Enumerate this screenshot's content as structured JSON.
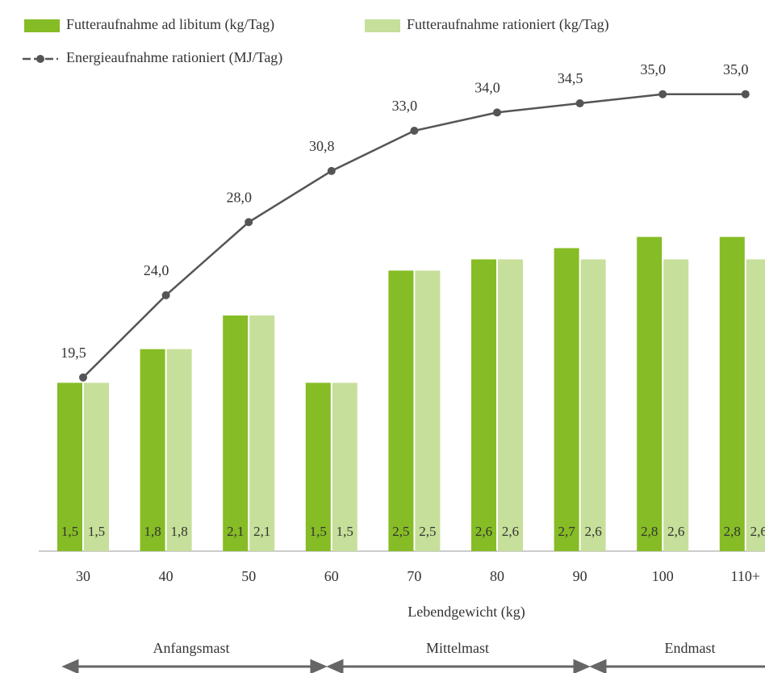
{
  "chart_data": {
    "type": "bar",
    "x_label": "Lebendgewicht (kg)",
    "categories": [
      "30",
      "40",
      "50",
      "60",
      "70",
      "80",
      "90",
      "100",
      "110+"
    ],
    "series": [
      {
        "name": "Futteraufnahme ad libitum (kg/Tag)",
        "color": "#86bc25",
        "values": [
          1.5,
          1.8,
          2.1,
          1.5,
          2.5,
          2.6,
          2.7,
          2.8,
          2.8
        ],
        "value_labels": [
          "1,5",
          "1,8",
          "2,1",
          "1,5",
          "2,5",
          "2,6",
          "2,7",
          "2,8",
          "2,8"
        ]
      },
      {
        "name": "Futteraufnahme rationiert (kg/Tag)",
        "color": "#c6df9a",
        "values": [
          1.5,
          1.8,
          2.1,
          1.5,
          2.5,
          2.6,
          2.6,
          2.6,
          2.6
        ],
        "value_labels": [
          "1,5",
          "1,8",
          "2,1",
          "1,5",
          "2,5",
          "2,6",
          "2,6",
          "2,6",
          "2,6"
        ]
      },
      {
        "name": "Energieaufnahme rationiert (MJ/Tag)",
        "type": "line",
        "axis": "y2",
        "color": "#555555",
        "values": [
          19.5,
          24.0,
          28.0,
          30.8,
          33.0,
          34.0,
          34.5,
          35.0,
          35.0
        ],
        "value_labels": [
          "19,5",
          "24,0",
          "28,0",
          "30,8",
          "33,0",
          "34,0",
          "34,5",
          "35,0",
          "35,0"
        ]
      }
    ],
    "ylim": [
      0,
      4.3
    ],
    "y2lim": [
      10,
      36.4
    ],
    "phases": [
      "Anfangsmast",
      "Mittelmast",
      "Endmast"
    ]
  }
}
